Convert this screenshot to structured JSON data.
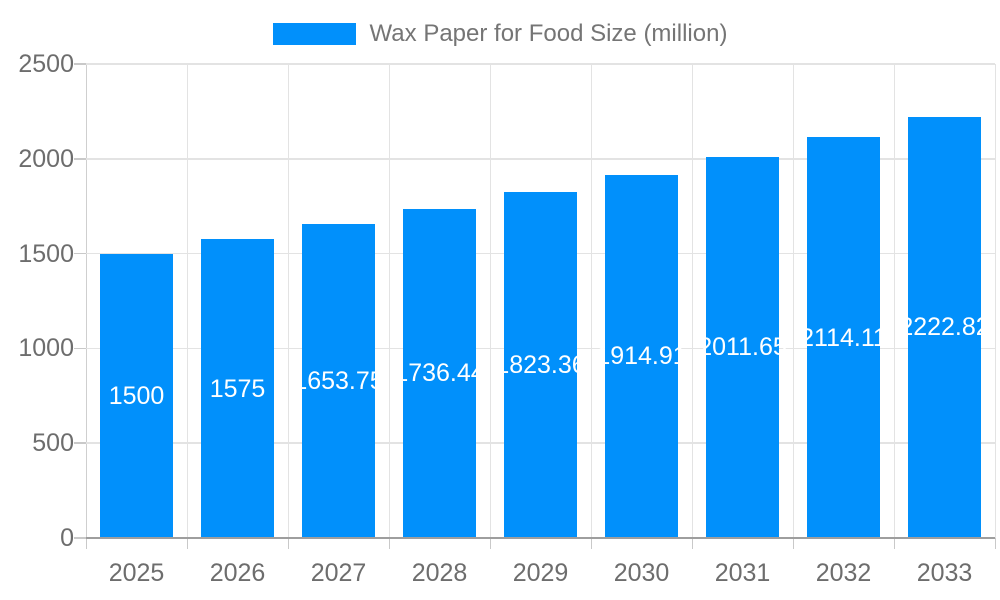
{
  "legend": {
    "label": "Wax Paper for Food Size (million)"
  },
  "colors": {
    "bar": "#0190fb",
    "grid": "#e3e3e3",
    "axis_grid": "#cfcfcf",
    "axis_line": "#9e9e9e",
    "tick": "#c9c9c9",
    "axis_text": "#6d6d6d",
    "legend_text": "#757575",
    "data_label": "#ffffff",
    "background": "#ffffff"
  },
  "chart_data": {
    "type": "bar",
    "title": "Wax Paper for Food Size (million)",
    "categories": [
      "2025",
      "2026",
      "2027",
      "2028",
      "2029",
      "2030",
      "2031",
      "2032",
      "2033"
    ],
    "values": [
      1500,
      1575,
      1653.75,
      1736.44,
      1823.36,
      1914.91,
      2011.65,
      2114.11,
      2222.82
    ],
    "value_labels": [
      "1500",
      "1575",
      "1653.75",
      "1736.44",
      "1823.36",
      "1914.91",
      "2011.65",
      "2114.11",
      "2222.82"
    ],
    "ylim": [
      0,
      2500
    ],
    "yticks": [
      0,
      500,
      1000,
      1500,
      2000,
      2500
    ],
    "ytick_labels": [
      "0",
      "500",
      "1000",
      "1500",
      "2000",
      "2500"
    ],
    "grid": true,
    "legend_position": "top-center",
    "data_label_position": "inside-center"
  }
}
